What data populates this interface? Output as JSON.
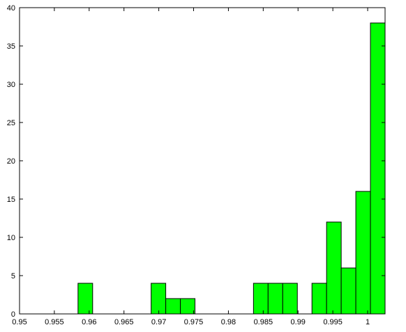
{
  "chart_data": {
    "type": "bar",
    "subtype": "histogram",
    "bin_width": 0.0021,
    "bins": [
      {
        "x0": 0.9584,
        "x1": 0.9605,
        "count": 4
      },
      {
        "x0": 0.9689,
        "x1": 0.971,
        "count": 4
      },
      {
        "x0": 0.971,
        "x1": 0.9731,
        "count": 2
      },
      {
        "x0": 0.9731,
        "x1": 0.9752,
        "count": 2
      },
      {
        "x0": 0.9836,
        "x1": 0.9857,
        "count": 4
      },
      {
        "x0": 0.9857,
        "x1": 0.9878,
        "count": 4
      },
      {
        "x0": 0.9878,
        "x1": 0.9899,
        "count": 4
      },
      {
        "x0": 0.992,
        "x1": 0.9941,
        "count": 4
      },
      {
        "x0": 0.9941,
        "x1": 0.9962,
        "count": 12
      },
      {
        "x0": 0.9962,
        "x1": 0.9983,
        "count": 6
      },
      {
        "x0": 0.9983,
        "x1": 1.0004,
        "count": 16
      },
      {
        "x0": 1.0004,
        "x1": 1.0025,
        "count": 38
      }
    ],
    "xlim": [
      0.95,
      1.0025
    ],
    "ylim": [
      0,
      40
    ],
    "x_ticks": [
      0.95,
      0.955,
      0.96,
      0.965,
      0.97,
      0.975,
      0.98,
      0.985,
      0.99,
      0.995,
      1
    ],
    "x_tick_labels": [
      "0.95",
      "0.955",
      "0.96",
      "0.965",
      "0.97",
      "0.975",
      "0.98",
      "0.985",
      "0.99",
      "0.995",
      "1"
    ],
    "y_ticks": [
      0,
      5,
      10,
      15,
      20,
      25,
      30,
      35,
      40
    ],
    "y_tick_labels": [
      "0",
      "5",
      "10",
      "15",
      "20",
      "25",
      "30",
      "35",
      "40"
    ],
    "title": "",
    "xlabel": "",
    "ylabel": "",
    "grid": false,
    "legend": "none",
    "bar_color": "#00ff00",
    "edge_color": "#000000"
  }
}
